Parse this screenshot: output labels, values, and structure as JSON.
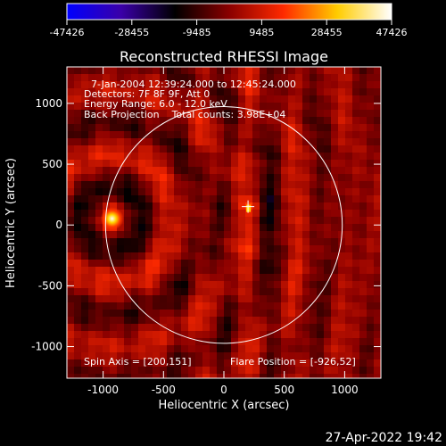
{
  "colorbar": {
    "ticks": [
      "-47426",
      "-28455",
      "-9485",
      "9485",
      "28455",
      "47426"
    ],
    "colors": [
      "#0000ff",
      "#3a00a8",
      "#000000",
      "#8a0000",
      "#ff2a00",
      "#ffcc00",
      "#ffffff"
    ]
  },
  "chart_data": {
    "type": "heatmap",
    "title": "Reconstructed RHESSI Image",
    "xlabel": "Heliocentric X (arcsec)",
    "ylabel": "Heliocentric Y (arcsec)",
    "xlim": [
      -1300,
      1300
    ],
    "ylim": [
      -1260,
      1300
    ],
    "xticks": [
      -1000,
      -500,
      0,
      500,
      1000
    ],
    "yticks": [
      -1000,
      -500,
      0,
      500,
      1000
    ],
    "value_range": [
      -47426,
      47426
    ],
    "solar_limb_radius_arcsec": 980,
    "flare_marker": [
      200,
      151
    ],
    "bright_source": [
      -926,
      52
    ],
    "info": {
      "line1": "7-Jan-2004 12:39:24.000 to 12:45:24.000",
      "line2": "Detectors: 7F 8F 9F, Att 0",
      "line3": "Energy Range: 6.0 - 12.0 keV",
      "line4": "Back Projection    Total counts: 3.98E+04"
    },
    "spin_axis": "Spin Axis = [200,151]",
    "flare_position": "Flare Position = [-926,52]"
  },
  "footer": {
    "timestamp": "27-Apr-2022 19:42"
  }
}
